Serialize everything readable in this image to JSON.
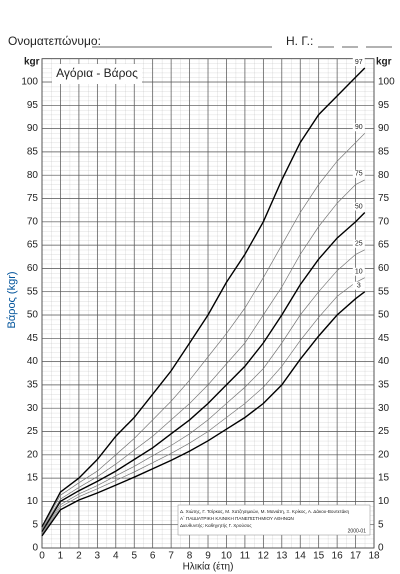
{
  "header": {
    "name_label": "Ονοματεπώνυμο:",
    "dob_label": "Η. Γ.:"
  },
  "chart_data": {
    "type": "line",
    "title": "Αγόρια - Βάρος",
    "xlabel": "Ηλικία (έτη)",
    "ylabel": "Βάρος (kgr)",
    "y_unit": "kgr",
    "x": [
      0,
      1,
      2,
      3,
      4,
      5,
      6,
      7,
      8,
      9,
      10,
      11,
      12,
      13,
      14,
      15,
      16,
      17,
      17.5
    ],
    "xlim": [
      0,
      18
    ],
    "xticks": [
      0,
      1,
      2,
      3,
      4,
      5,
      6,
      7,
      8,
      9,
      10,
      11,
      12,
      13,
      14,
      15,
      16,
      17,
      18
    ],
    "ylim": [
      0,
      105
    ],
    "yticks": [
      0,
      5,
      10,
      15,
      20,
      25,
      30,
      35,
      40,
      45,
      50,
      55,
      60,
      65,
      70,
      75,
      80,
      85,
      90,
      95,
      100
    ],
    "grid": true,
    "series": [
      {
        "name": "97",
        "color": "#000000",
        "values": [
          4.5,
          12,
          15,
          19,
          24,
          28,
          33,
          38,
          44,
          50,
          57,
          63,
          70,
          79,
          87,
          93,
          97,
          101,
          103
        ]
      },
      {
        "name": "90",
        "color": "#777777",
        "values": [
          4.2,
          11.3,
          14,
          16.5,
          20,
          23.5,
          27.5,
          31.5,
          36,
          41,
          46,
          51.5,
          58,
          65,
          72,
          78,
          83,
          87,
          89
        ]
      },
      {
        "name": "75",
        "color": "#777777",
        "values": [
          3.9,
          10.5,
          13,
          15.3,
          18,
          21,
          24,
          27.5,
          31,
          35,
          39.5,
          44,
          50,
          56,
          63,
          69,
          74,
          78,
          79
        ]
      },
      {
        "name": "50",
        "color": "#000000",
        "values": [
          3.5,
          10,
          12.3,
          14.3,
          16.5,
          19,
          21.5,
          24.5,
          27.5,
          31,
          35,
          39,
          44,
          50,
          56.5,
          62,
          66.5,
          70,
          72
        ]
      },
      {
        "name": "25",
        "color": "#777777",
        "values": [
          3.2,
          9.3,
          11.6,
          13.4,
          15.5,
          17.5,
          19.8,
          22,
          24.5,
          27.5,
          31,
          34.5,
          38.5,
          44,
          50,
          55,
          59.5,
          63,
          64
        ]
      },
      {
        "name": "10",
        "color": "#777777",
        "values": [
          2.9,
          8.8,
          11,
          12.7,
          14.5,
          16.3,
          18.3,
          20.3,
          22.5,
          25,
          28,
          31,
          34.5,
          39,
          44.5,
          49.5,
          54,
          57,
          58
        ]
      },
      {
        "name": "3",
        "color": "#000000",
        "values": [
          2.6,
          8.2,
          10.3,
          11.8,
          13.5,
          15.2,
          17,
          18.8,
          20.8,
          23,
          25.5,
          28,
          31,
          35,
          40.5,
          45.5,
          50,
          53.5,
          55
        ]
      }
    ],
    "credits": [
      "Δ. Χιώτης, Γ. Τσίρκας, Μ. Χατζησιμεών, Μ. Μανιάτη, Ξ. Κρίκος, Α. Δάκου-Βουτετάκη",
      "Α΄ ΠΑΙΔΙΑΤΡΙΚΗ ΚΛΙΝΙΚΗ ΠΑΝΕΠΙΣΤΗΜΙΟΥ ΑΘΗΝΩΝ",
      "Διευθυντής: Καθηγητής Γ. Χρούσος",
      "2000-01"
    ]
  }
}
